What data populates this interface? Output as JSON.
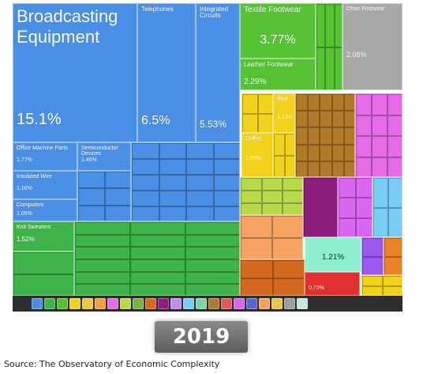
{
  "chart_data": {
    "type": "treemap",
    "title": "",
    "tiles": [
      {
        "key": "broadcasting",
        "label": "Broadcasting Equipment",
        "value": "15.1%",
        "color": "#4a8fe6"
      },
      {
        "key": "telephones",
        "label": "Telephones",
        "value": "6.5%",
        "color": "#4a8fe6"
      },
      {
        "key": "integrated",
        "label": "Integrated Circuits",
        "value": "5.53%",
        "color": "#4a8fe6"
      },
      {
        "key": "textile",
        "label": "Textile Footwear",
        "value": "3.77%",
        "color": "#54c232"
      },
      {
        "key": "leather",
        "label": "Leather Footwear",
        "value": "2.29%",
        "color": "#54c232"
      },
      {
        "key": "otherfootwear",
        "label": "Other Footwear",
        "value": "2.08%",
        "color": "#a8a8a8"
      },
      {
        "key": "office",
        "label": "Office Machine Parts",
        "value": "1.77%",
        "color": "#4a8fe6"
      },
      {
        "key": "semiconductor",
        "label": "Semiconductor Devices",
        "value": "1.46%",
        "color": "#4a8fe6"
      },
      {
        "key": "insulated",
        "label": "Insulated Wire",
        "value": "1.16%",
        "color": "#4a8fe6"
      },
      {
        "key": "computers",
        "label": "Computers",
        "value": "1.05%",
        "color": "#4a8fe6"
      },
      {
        "key": "knitsweaters",
        "label": "Knit Sweaters",
        "value": "1.52%",
        "color": "#3fb34a"
      },
      {
        "key": "rice",
        "label": "Rice",
        "value": "1.13%",
        "color": "#f2d21b"
      },
      {
        "key": "coffee",
        "label": "Coffee",
        "value": "1.69%",
        "color": "#f2d21b"
      },
      {
        "key": "furniture",
        "label": "",
        "value": "1.21%",
        "color": "#8ff0cf"
      },
      {
        "key": "frozen",
        "label": "",
        "value": "0.73%",
        "color": "#e0302f"
      }
    ]
  },
  "legend": {
    "icons": [
      {
        "name": "machines-icon",
        "color": "#4a8fe6"
      },
      {
        "name": "textiles-icon",
        "color": "#3fb34a"
      },
      {
        "name": "footwear-icon",
        "color": "#54c232"
      },
      {
        "name": "vegetable-products-icon",
        "color": "#f2d21b"
      },
      {
        "name": "foodstuffs-icon",
        "color": "#e9c640"
      },
      {
        "name": "animal-products-icon",
        "color": "#f0a040"
      },
      {
        "name": "chemical-products-icon",
        "color": "#e66ce8"
      },
      {
        "name": "plastics-icon",
        "color": "#b8d94a"
      },
      {
        "name": "mineral-products-icon",
        "color": "#7cb342"
      },
      {
        "name": "metals-icon",
        "color": "#d2691e"
      },
      {
        "name": "instruments-icon",
        "color": "#8c1d7a"
      },
      {
        "name": "transportation-icon",
        "color": "#c28bf0"
      },
      {
        "name": "miscellaneous-icon",
        "color": "#78cdf5"
      },
      {
        "name": "stone-glass-icon",
        "color": "#7fd6a8"
      },
      {
        "name": "wood-products-icon",
        "color": "#b07a2a"
      },
      {
        "name": "paper-goods-icon",
        "color": "#e05a5a"
      },
      {
        "name": "precious-metals-icon",
        "color": "#d966f0"
      },
      {
        "name": "weapons-icon",
        "color": "#5b68c9"
      },
      {
        "name": "animal-hides-icon",
        "color": "#f4a460"
      },
      {
        "name": "arts-icon",
        "color": "#e8c547"
      },
      {
        "name": "other-icon",
        "color": "#9e9e9e"
      },
      {
        "name": "services-icon",
        "color": "#bfe8e0"
      }
    ]
  },
  "year": "2019",
  "source": "Source: The Observatory of Economic Complexity"
}
